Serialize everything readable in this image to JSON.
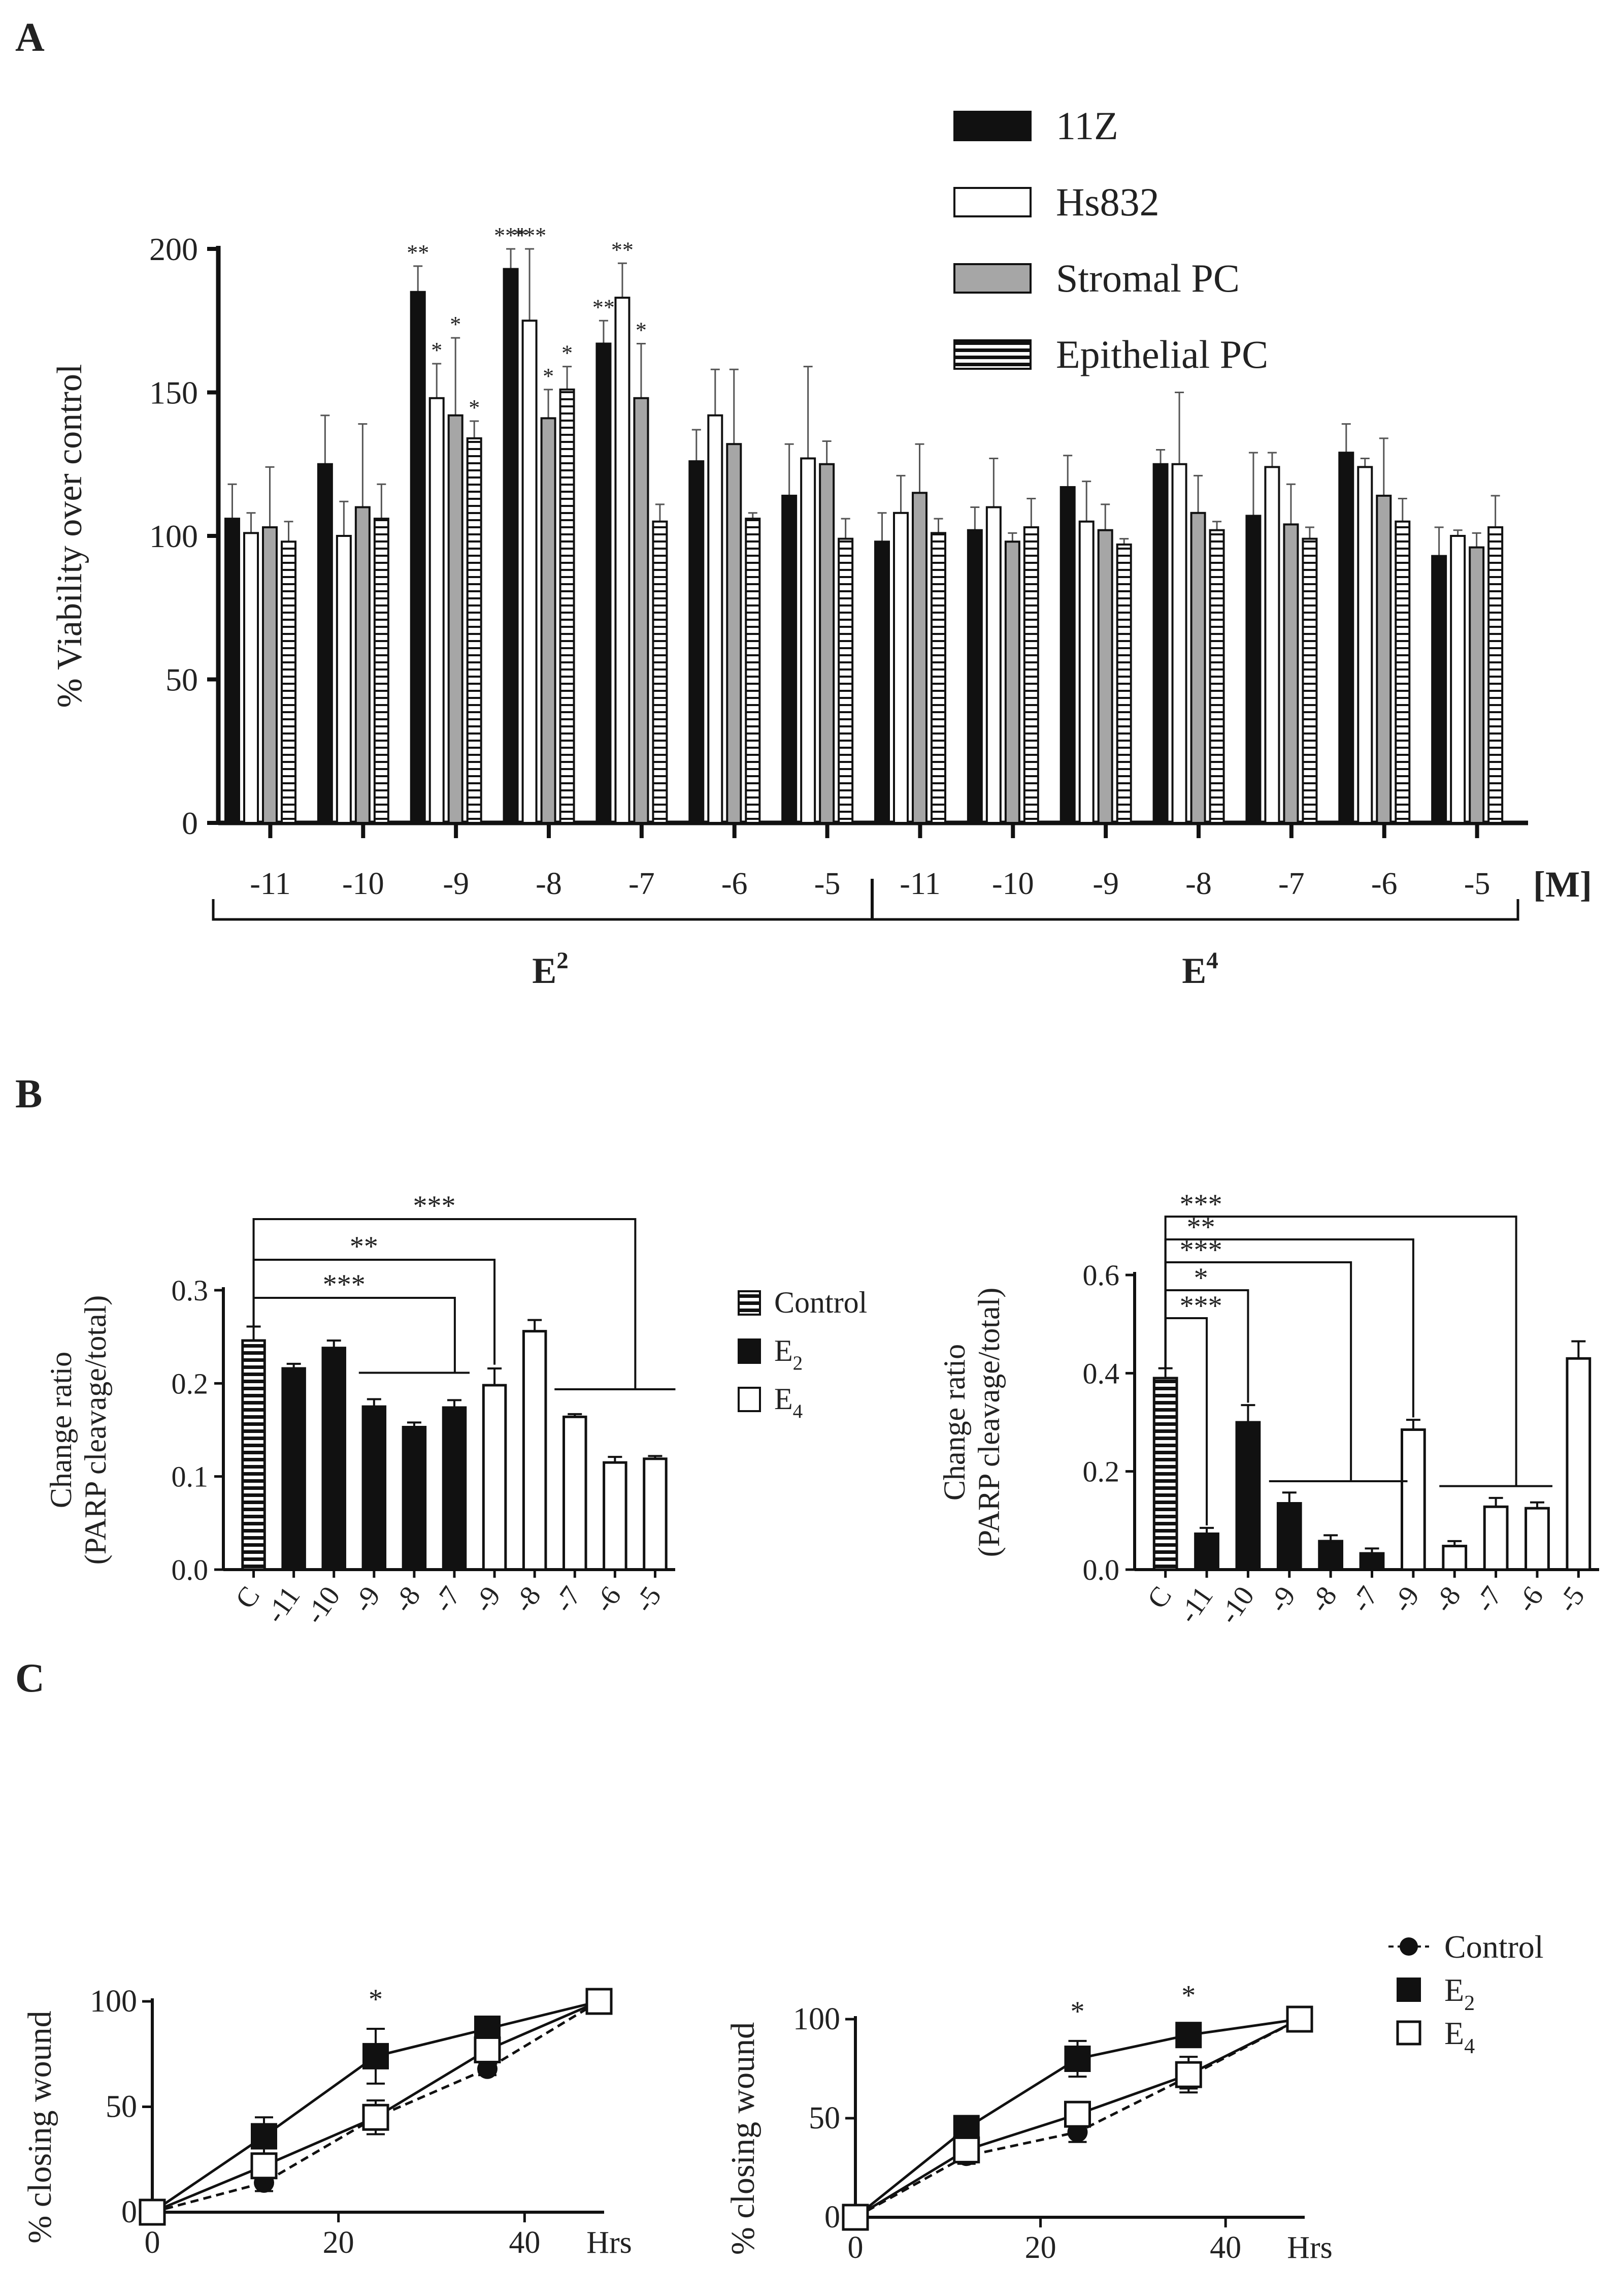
{
  "figure": {
    "panels": [
      "A",
      "B",
      "C"
    ]
  },
  "chart_data": [
    {
      "id": "panelA",
      "type": "bar",
      "panel_label": "A",
      "ylabel": "% Viability over control",
      "ylim": [
        0,
        200
      ],
      "yticks": [
        0,
        50,
        100,
        150,
        200
      ],
      "unit_label": "[M]",
      "groups": [
        {
          "name": "E",
          "superscript": "2",
          "categories": [
            "-11",
            "-10",
            "-9",
            "-8",
            "-7",
            "-6",
            "-5"
          ]
        },
        {
          "name": "E",
          "superscript": "4",
          "categories": [
            "-11",
            "-10",
            "-9",
            "-8",
            "-7",
            "-6",
            "-5"
          ]
        }
      ],
      "series": [
        {
          "name": "11Z",
          "style": "black",
          "values": [
            106,
            125,
            185,
            193,
            167,
            126,
            114,
            98,
            102,
            117,
            125,
            107,
            129,
            93
          ],
          "errors": [
            12,
            17,
            9,
            7,
            8,
            11,
            18,
            10,
            8,
            11,
            5,
            22,
            10,
            10
          ],
          "stars": [
            "",
            "",
            "**",
            "***",
            "**",
            "",
            "",
            "",
            "",
            "",
            "",
            "",
            "",
            ""
          ]
        },
        {
          "name": "Hs832",
          "style": "white",
          "values": [
            101,
            100,
            148,
            175,
            183,
            142,
            127,
            108,
            110,
            105,
            125,
            124,
            124,
            100
          ],
          "errors": [
            7,
            12,
            12,
            25,
            12,
            16,
            32,
            13,
            17,
            14,
            25,
            5,
            3,
            2
          ],
          "stars": [
            "",
            "",
            "*",
            "***",
            "**",
            "",
            "",
            "",
            "",
            "",
            "",
            "",
            "",
            ""
          ]
        },
        {
          "name": "Stromal PC",
          "style": "gray",
          "values": [
            103,
            110,
            142,
            141,
            148,
            132,
            125,
            115,
            98,
            102,
            108,
            104,
            114,
            96
          ],
          "errors": [
            21,
            29,
            27,
            10,
            19,
            26,
            8,
            17,
            3,
            9,
            13,
            14,
            20,
            5
          ],
          "stars": [
            "",
            "",
            "*",
            "*",
            "*",
            "",
            "",
            "",
            "",
            "",
            "",
            "",
            "",
            ""
          ]
        },
        {
          "name": "Epithelial PC",
          "style": "hatch",
          "values": [
            98,
            106,
            134,
            151,
            105,
            106,
            99,
            101,
            103,
            97,
            102,
            99,
            105,
            103
          ],
          "errors": [
            7,
            12,
            6,
            8,
            6,
            2,
            7,
            5,
            10,
            2,
            3,
            4,
            8,
            11
          ],
          "stars": [
            "",
            "",
            "*",
            "*",
            "",
            "",
            "",
            "",
            "",
            "",
            "",
            "",
            "",
            ""
          ]
        }
      ]
    },
    {
      "id": "panelB1",
      "type": "bar",
      "panel_label": "B",
      "ylabel_line1": "Change ratio",
      "ylabel_line2": "(PARP cleavage/total)",
      "ylim": [
        0,
        0.3
      ],
      "yticks": [
        "0.0",
        "0.1",
        "0.2",
        "0.3"
      ],
      "categories": [
        "C",
        "-11",
        "-10",
        "-9",
        "-8",
        "-7",
        "-9",
        "-8",
        "-7",
        "-6",
        "-5"
      ],
      "values": [
        0.246,
        0.216,
        0.238,
        0.175,
        0.153,
        0.174,
        0.198,
        0.256,
        0.164,
        0.115,
        0.119
      ],
      "errors": [
        0.015,
        0.005,
        0.008,
        0.008,
        0.005,
        0.008,
        0.018,
        0.012,
        0.003,
        0.006,
        0.003
      ],
      "styles": [
        "hatch",
        "black",
        "black",
        "black",
        "black",
        "black",
        "white",
        "white",
        "white",
        "white",
        "white"
      ],
      "brackets": [
        {
          "label": "***",
          "to": "E2 -9..-7"
        },
        {
          "label": "**",
          "to": "E4 -9"
        },
        {
          "label": "***",
          "to": "E4 -7..-5"
        }
      ]
    },
    {
      "id": "panelB2",
      "type": "bar",
      "ylabel_line1": "Change ratio",
      "ylabel_line2": "(PARP cleavage/total)",
      "ylim": [
        0,
        0.6
      ],
      "yticks": [
        "0.0",
        "0.2",
        "0.4",
        "0.6"
      ],
      "categories": [
        "C",
        "-11",
        "-10",
        "-9",
        "-8",
        "-7",
        "-9",
        "-8",
        "-7",
        "-6",
        "-5"
      ],
      "values": [
        0.39,
        0.073,
        0.3,
        0.135,
        0.058,
        0.033,
        0.285,
        0.048,
        0.128,
        0.125,
        0.43
      ],
      "errors": [
        0.02,
        0.012,
        0.035,
        0.022,
        0.012,
        0.01,
        0.02,
        0.01,
        0.018,
        0.012,
        0.035
      ],
      "styles": [
        "hatch",
        "black",
        "black",
        "black",
        "black",
        "black",
        "white",
        "white",
        "white",
        "white",
        "white"
      ],
      "brackets": [
        {
          "label": "***",
          "to": "E2 -11"
        },
        {
          "label": "*",
          "to": "E2 -10"
        },
        {
          "label": "***",
          "to": "E2 -9..-7"
        },
        {
          "label": "**",
          "to": "E4 -9"
        },
        {
          "label": "***",
          "to": "E4 -8..-6"
        }
      ]
    },
    {
      "id": "panelC1",
      "type": "line",
      "panel_label": "C",
      "ylabel": "% closing wound",
      "xlabel": "Hrs",
      "xlim": [
        0,
        48
      ],
      "ylim": [
        0,
        100
      ],
      "xticks": [
        0,
        20,
        40
      ],
      "yticks": [
        0,
        50,
        100
      ],
      "x": [
        0,
        12,
        24,
        36,
        48
      ],
      "series": [
        {
          "name": "Control",
          "marker": "circle",
          "dashed": true,
          "values": [
            0,
            14,
            45,
            68,
            100
          ],
          "errors": [
            0,
            4,
            5,
            3,
            0
          ]
        },
        {
          "name": "E2",
          "marker": "square",
          "dashed": false,
          "values": [
            0,
            36,
            74,
            87,
            100
          ],
          "errors": [
            0,
            9,
            13,
            5,
            0
          ]
        },
        {
          "name": "E4",
          "marker": "open-square",
          "dashed": false,
          "values": [
            0,
            22,
            45,
            77,
            100
          ],
          "errors": [
            0,
            5,
            8,
            6,
            0
          ]
        }
      ],
      "stars": [
        {
          "x": 24,
          "label": "*"
        }
      ]
    },
    {
      "id": "panelC2",
      "type": "line",
      "ylabel": "% closing wound",
      "xlabel": "Hrs",
      "xlim": [
        0,
        48
      ],
      "ylim": [
        0,
        100
      ],
      "xticks": [
        0,
        20,
        40
      ],
      "yticks": [
        0,
        50,
        100
      ],
      "x": [
        0,
        12,
        24,
        36,
        48
      ],
      "series": [
        {
          "name": "Control",
          "marker": "circle",
          "dashed": true,
          "values": [
            0,
            31,
            43,
            71,
            100
          ],
          "errors": [
            0,
            4,
            5,
            6,
            0
          ]
        },
        {
          "name": "E2",
          "marker": "square",
          "dashed": false,
          "values": [
            0,
            45,
            80,
            92,
            100
          ],
          "errors": [
            0,
            4,
            9,
            5,
            0
          ]
        },
        {
          "name": "E4",
          "marker": "open-square",
          "dashed": false,
          "values": [
            0,
            34,
            52,
            72,
            100
          ],
          "errors": [
            0,
            5,
            4,
            9,
            0
          ]
        }
      ],
      "stars": [
        {
          "x": 24,
          "label": "*"
        },
        {
          "x": 36,
          "label": "*"
        }
      ]
    }
  ],
  "legends": {
    "B": [
      {
        "label": "Control",
        "style": "hatch"
      },
      {
        "label": "E",
        "subscript": "2",
        "style": "black"
      },
      {
        "label": "E",
        "subscript": "4",
        "style": "white"
      }
    ],
    "C": [
      {
        "label": "Control",
        "marker": "circle"
      },
      {
        "label": "E",
        "subscript": "2",
        "marker": "square"
      },
      {
        "label": "E",
        "subscript": "4",
        "marker": "open-square"
      }
    ]
  }
}
